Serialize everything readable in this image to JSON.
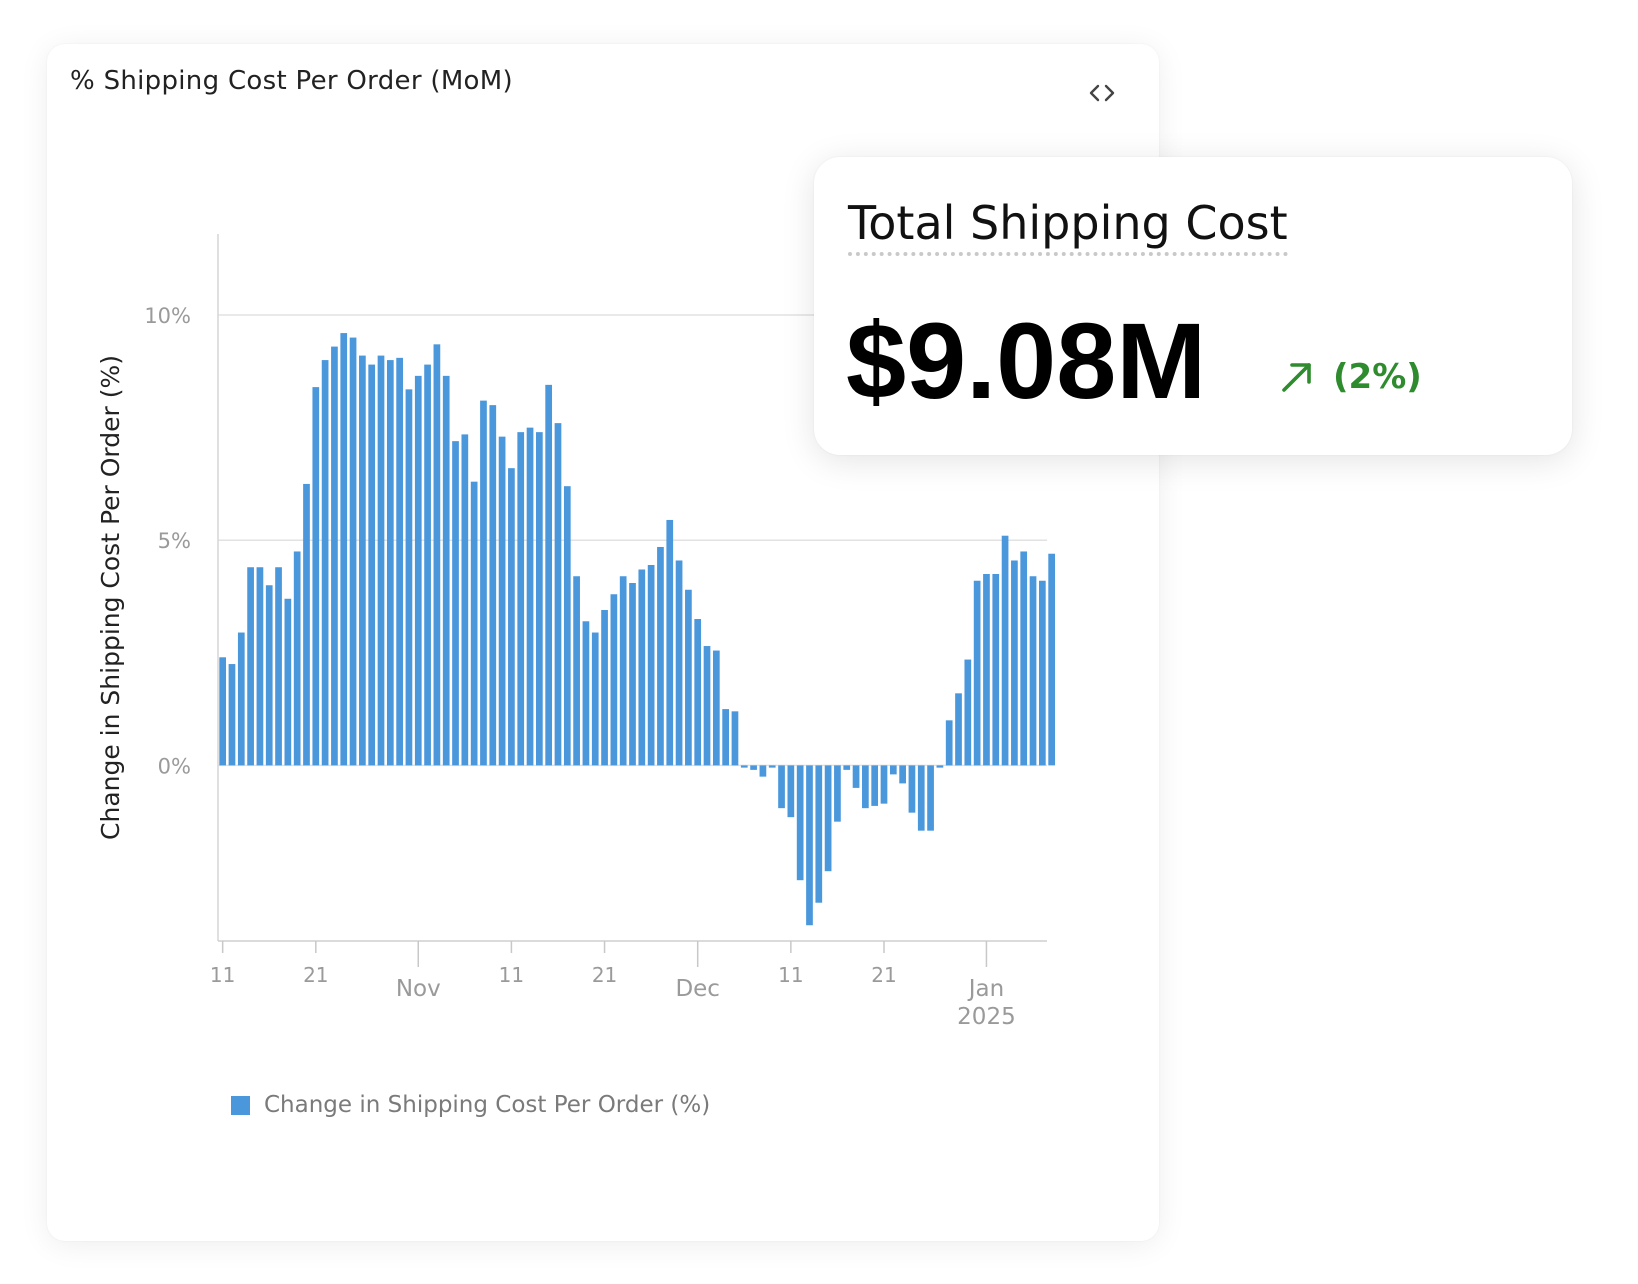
{
  "card": {
    "title": "% Shipping Cost Per Order (MoM)",
    "embed_icon": "code-icon"
  },
  "kpi": {
    "title": "Total Shipping Cost",
    "value": "$9.08M",
    "change_icon": "arrow-up-right-icon",
    "change": "(2%)",
    "change_color": "#2e8b2e"
  },
  "chart_data": {
    "type": "bar",
    "title": "% Shipping Cost Per Order (MoM)",
    "ylabel": "Change in Shipping Cost Per Order (%)",
    "xlabel": "",
    "ylim": [
      -3.9,
      11.8
    ],
    "yticks": [
      0,
      5,
      10
    ],
    "ytick_labels": [
      "0%",
      "5%",
      "10%"
    ],
    "grid": true,
    "legend": "bottom-left",
    "bar_color": "#4a97dc",
    "x_start": "2024-10-11",
    "x_end": "2025-01-08",
    "xticks": [
      {
        "date": "2024-10-11",
        "label": "11"
      },
      {
        "date": "2024-10-21",
        "label": "21"
      },
      {
        "date": "2024-11-01",
        "label": "Nov"
      },
      {
        "date": "2024-11-11",
        "label": "11"
      },
      {
        "date": "2024-11-21",
        "label": "21"
      },
      {
        "date": "2024-12-01",
        "label": "Dec"
      },
      {
        "date": "2024-12-11",
        "label": "11"
      },
      {
        "date": "2024-12-21",
        "label": "21"
      },
      {
        "date": "2025-01-01",
        "label": "Jan",
        "sublabel": "2025"
      }
    ],
    "series": [
      {
        "name": "Change in Shipping Cost Per Order (%)",
        "values": [
          2.4,
          2.25,
          2.95,
          4.4,
          4.4,
          4.0,
          4.4,
          3.7,
          4.75,
          6.25,
          8.4,
          9.0,
          9.3,
          9.6,
          9.5,
          9.1,
          8.9,
          9.1,
          9.0,
          9.05,
          8.35,
          8.65,
          8.9,
          9.35,
          8.65,
          7.2,
          7.35,
          6.3,
          8.1,
          8.0,
          7.3,
          6.6,
          7.4,
          7.5,
          7.4,
          8.45,
          7.6,
          6.2,
          4.2,
          3.2,
          2.95,
          3.45,
          3.8,
          4.2,
          4.05,
          4.35,
          4.45,
          4.85,
          5.45,
          4.55,
          3.9,
          3.25,
          2.65,
          2.55,
          1.25,
          1.2,
          -0.05,
          -0.1,
          -0.25,
          -0.05,
          -0.95,
          -1.15,
          -2.55,
          -3.55,
          -3.05,
          -2.35,
          -1.25,
          -0.1,
          -0.5,
          -0.95,
          -0.9,
          -0.85,
          -0.2,
          -0.4,
          -1.05,
          -1.45,
          -1.45,
          -0.05,
          1.0,
          1.6,
          2.35,
          4.1,
          4.25,
          4.25,
          5.1,
          4.55,
          4.75,
          4.2,
          4.1,
          4.7
        ]
      }
    ]
  }
}
